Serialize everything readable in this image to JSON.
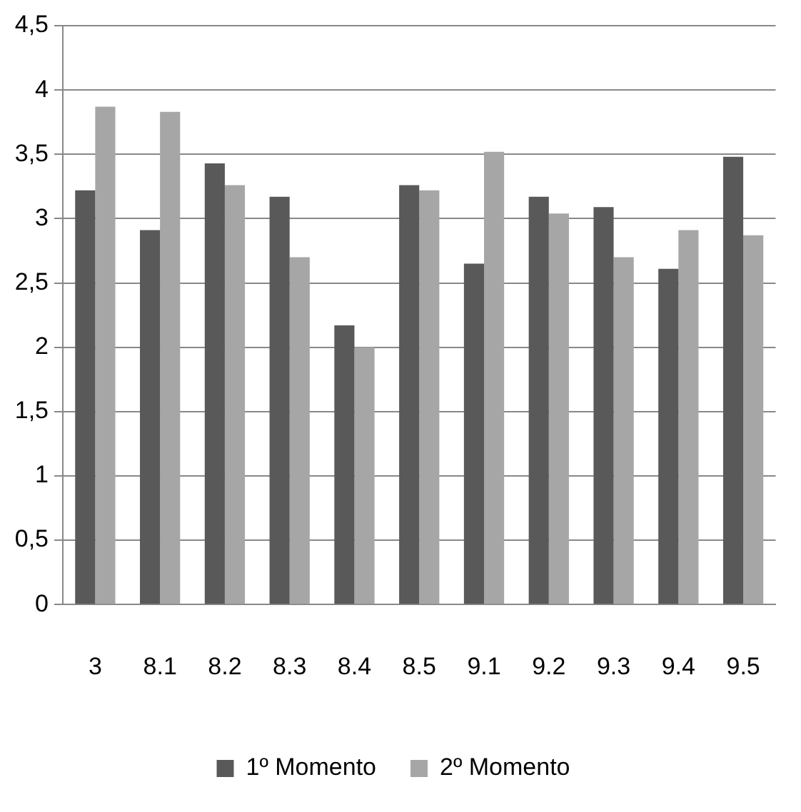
{
  "chart_data": {
    "type": "bar",
    "categories": [
      "3",
      "8.1",
      "8.2",
      "8.3",
      "8.4",
      "8.5",
      "9.1",
      "9.2",
      "9.3",
      "9.4",
      "9.5"
    ],
    "series": [
      {
        "name": "1º Momento",
        "color": "#595959",
        "values": [
          3.22,
          2.91,
          3.43,
          3.17,
          2.17,
          3.26,
          2.65,
          3.17,
          3.09,
          2.61,
          3.48
        ]
      },
      {
        "name": "2º Momento",
        "color": "#a6a6a6",
        "values": [
          3.87,
          3.83,
          3.26,
          2.7,
          2.0,
          3.22,
          3.52,
          3.04,
          2.7,
          2.91,
          2.87
        ]
      }
    ],
    "ylim": [
      0,
      4.5
    ],
    "yticks": [
      0,
      {
        "value": 0.5,
        "label": "0,5"
      },
      1,
      {
        "value": 1.5,
        "label": "1,5"
      },
      2,
      {
        "value": 2.5,
        "label": "2,5"
      },
      3,
      {
        "value": 3.5,
        "label": "3,5"
      },
      4,
      {
        "value": 4.5,
        "label": "4,5"
      }
    ],
    "grid": "y",
    "legend": "bottom"
  }
}
